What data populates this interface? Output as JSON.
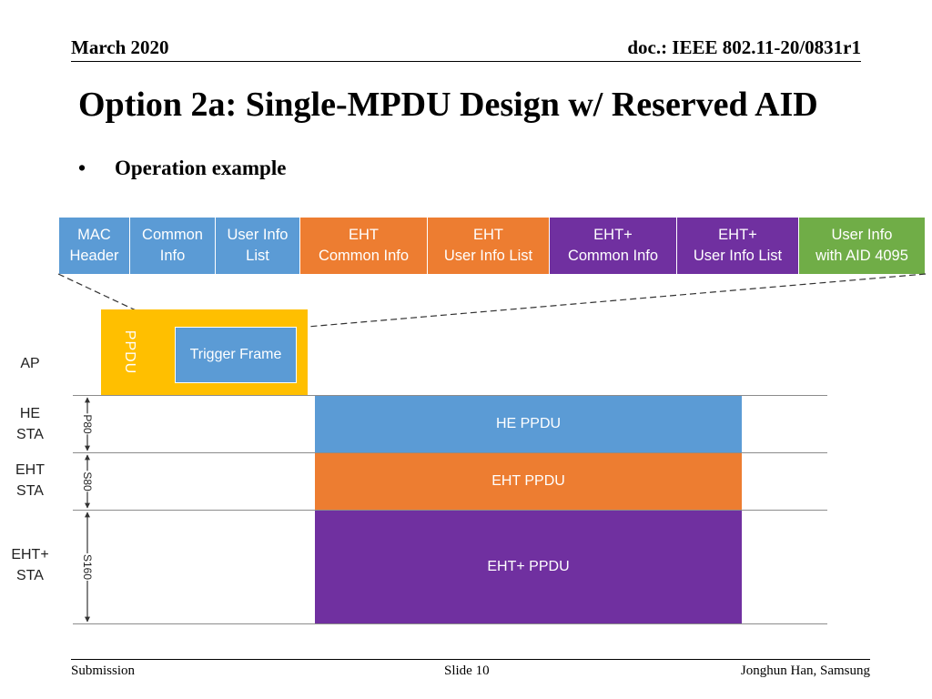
{
  "header": {
    "date": "March 2020",
    "doc": "doc.: IEEE 802.11-20/0831r1"
  },
  "title": "Option 2a: Single-MPDU Design w/ Reserved AID",
  "bullet": {
    "marker": "•",
    "text": "Operation example"
  },
  "frame_fields": [
    {
      "label": "MAC\nHeader",
      "color": "#5b9bd5"
    },
    {
      "label": "Common\nInfo",
      "color": "#5b9bd5"
    },
    {
      "label": "User Info\nList",
      "color": "#5b9bd5"
    },
    {
      "label": "EHT\nCommon Info",
      "color": "#ed7d31"
    },
    {
      "label": "EHT\nUser Info List",
      "color": "#ed7d31"
    },
    {
      "label": "EHT+\nCommon Info",
      "color": "#7030a0"
    },
    {
      "label": "EHT+\nUser Info List",
      "color": "#7030a0"
    },
    {
      "label": "User Info\nwith AID 4095",
      "color": "#70ad47"
    }
  ],
  "ap": {
    "label": "AP",
    "ppdu_label": "PPDU",
    "trigger_label": "Trigger Frame",
    "color": "#ffbf00"
  },
  "stations": [
    {
      "label": "HE\nSTA",
      "band": "P80",
      "ppdu": "HE PPDU",
      "color": "#5b9bd5"
    },
    {
      "label": "EHT\nSTA",
      "band": "S80",
      "ppdu": "EHT PPDU",
      "color": "#ed7d31"
    },
    {
      "label": "EHT+\nSTA",
      "band": "S160",
      "ppdu": "EHT+ PPDU",
      "color": "#7030a0"
    }
  ],
  "footer": {
    "left": "Submission",
    "center": "Slide 10",
    "right": "Jonghun Han, Samsung"
  }
}
